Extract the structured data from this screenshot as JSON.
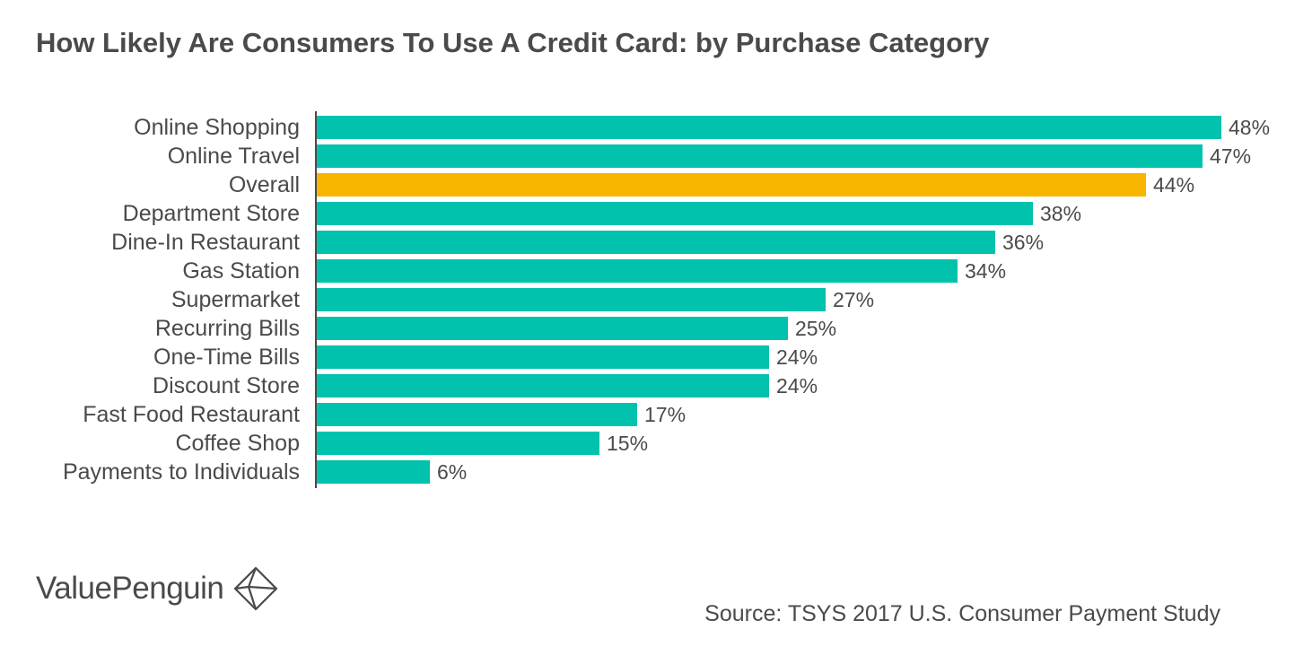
{
  "chart_data": {
    "type": "bar",
    "orientation": "horizontal",
    "title": "How Likely Are Consumers To Use A Credit Card: by Purchase Category",
    "categories": [
      "Online Shopping",
      "Online Travel",
      "Overall",
      "Department Store",
      "Dine-In Restaurant",
      "Gas Station",
      "Supermarket",
      "Recurring Bills",
      "One-Time Bills",
      "Discount Store",
      "Fast Food Restaurant",
      "Coffee Shop",
      "Payments to Individuals"
    ],
    "values": [
      48,
      47,
      44,
      38,
      36,
      34,
      27,
      25,
      24,
      24,
      17,
      15,
      6
    ],
    "value_labels": [
      "48%",
      "47%",
      "44%",
      "38%",
      "36%",
      "34%",
      "27%",
      "25%",
      "24%",
      "24%",
      "17%",
      "15%",
      "6%"
    ],
    "unit": "%",
    "highlight_category": "Overall",
    "xlabel": "",
    "ylabel": "",
    "xlim": [
      0,
      48
    ],
    "grid": false,
    "legend": "none"
  },
  "colors": {
    "bar": "#00c2ad",
    "highlight": "#f7b500",
    "axis": "#4a4a4a",
    "text": "#4a4a4a"
  },
  "brand": {
    "name": "ValuePenguin",
    "icon": "valuepenguin-logo-icon"
  },
  "source": "Source: TSYS 2017 U.S. Consumer Payment Study"
}
